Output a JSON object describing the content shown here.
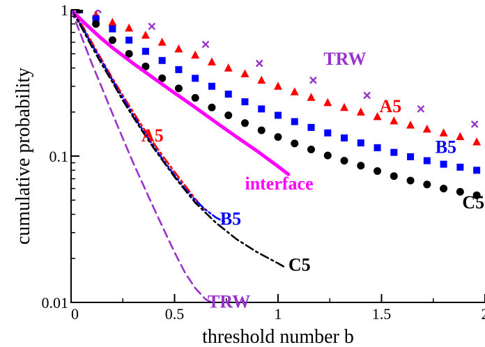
{
  "chart_data": {
    "type": "scatter",
    "xlabel": "threshold number b",
    "ylabel": "cumulative probability",
    "xlim": [
      0,
      2
    ],
    "ylim": [
      0.01,
      1
    ],
    "yscale": "log",
    "grid": false,
    "x_ticks": [
      0,
      0.5,
      1,
      1.5,
      2
    ],
    "x_tick_labels": [
      "0",
      "0.5",
      "1",
      "1.5",
      "2"
    ],
    "y_ticks": [
      0.01,
      0.1,
      1
    ],
    "y_tick_labels": [
      "0.01",
      "0.1",
      "1"
    ],
    "series": [
      {
        "name": "TRW",
        "style": "markers",
        "marker": "x",
        "color": "#9932cc",
        "x": [
          0.04,
          0.13,
          0.39,
          0.65,
          0.91,
          1.17,
          1.43,
          1.69,
          1.95
        ],
        "y": [
          1.0,
          1.0,
          0.77,
          0.58,
          0.43,
          0.33,
          0.26,
          0.21,
          0.165
        ]
      },
      {
        "name": "A5",
        "style": "markers",
        "marker": "triangle",
        "color": "#ff0000",
        "x": [
          0.04,
          0.12,
          0.2,
          0.28,
          0.36,
          0.44,
          0.52,
          0.6,
          0.68,
          0.76,
          0.84,
          0.92,
          1.0,
          1.08,
          1.16,
          1.24,
          1.32,
          1.4,
          1.48,
          1.56,
          1.64,
          1.72,
          1.8,
          1.88,
          1.96
        ],
        "y": [
          1.0,
          0.92,
          0.82,
          0.75,
          0.67,
          0.6,
          0.54,
          0.49,
          0.44,
          0.4,
          0.365,
          0.33,
          0.3,
          0.275,
          0.252,
          0.232,
          0.215,
          0.2,
          0.186,
          0.174,
          0.163,
          0.153,
          0.144,
          0.136,
          0.125
        ]
      },
      {
        "name": "B5",
        "style": "markers",
        "marker": "square",
        "color": "#0000ff",
        "x": [
          0.04,
          0.12,
          0.2,
          0.28,
          0.36,
          0.44,
          0.52,
          0.6,
          0.68,
          0.76,
          0.84,
          0.92,
          1.0,
          1.08,
          1.16,
          1.24,
          1.32,
          1.4,
          1.48,
          1.56,
          1.64,
          1.72,
          1.8,
          1.88,
          1.96
        ],
        "y": [
          1.0,
          0.87,
          0.74,
          0.62,
          0.52,
          0.45,
          0.39,
          0.34,
          0.3,
          0.265,
          0.235,
          0.21,
          0.19,
          0.172,
          0.157,
          0.144,
          0.133,
          0.123,
          0.114,
          0.106,
          0.099,
          0.093,
          0.088,
          0.084,
          0.08
        ]
      },
      {
        "name": "C5",
        "style": "markers",
        "marker": "circle",
        "color": "#000000",
        "x": [
          0.04,
          0.12,
          0.2,
          0.28,
          0.36,
          0.44,
          0.52,
          0.6,
          0.68,
          0.76,
          0.84,
          0.92,
          1.0,
          1.08,
          1.16,
          1.24,
          1.32,
          1.4,
          1.48,
          1.56,
          1.64,
          1.72,
          1.8,
          1.88,
          1.96
        ],
        "y": [
          1.0,
          0.8,
          0.62,
          0.5,
          0.41,
          0.34,
          0.29,
          0.25,
          0.215,
          0.19,
          0.168,
          0.15,
          0.135,
          0.122,
          0.111,
          0.101,
          0.093,
          0.086,
          0.079,
          0.073,
          0.068,
          0.064,
          0.06,
          0.057,
          0.054
        ]
      },
      {
        "name": "interface",
        "style": "solid",
        "color": "#ff00ff",
        "x": [
          0.0,
          0.05,
          0.1,
          0.15,
          0.2,
          0.3,
          0.4,
          0.5,
          0.6,
          0.7,
          0.8,
          0.9,
          1.0,
          1.05
        ],
        "y": [
          1.0,
          0.85,
          0.73,
          0.63,
          0.55,
          0.43,
          0.34,
          0.27,
          0.215,
          0.17,
          0.135,
          0.108,
          0.085,
          0.075
        ]
      },
      {
        "name": "A5",
        "style": "dashdot",
        "color": "#ff0000",
        "x": [
          0.0,
          0.05,
          0.1,
          0.15,
          0.2,
          0.25,
          0.3,
          0.35,
          0.4,
          0.45,
          0.5,
          0.55,
          0.6,
          0.65
        ],
        "y": [
          1.0,
          0.8,
          0.6,
          0.45,
          0.34,
          0.26,
          0.2,
          0.155,
          0.122,
          0.097,
          0.078,
          0.063,
          0.051,
          0.042
        ]
      },
      {
        "name": "B5",
        "style": "dashdotdot",
        "color": "#0000ff",
        "x": [
          0.0,
          0.05,
          0.1,
          0.15,
          0.2,
          0.25,
          0.3,
          0.35,
          0.4,
          0.45,
          0.5,
          0.55,
          0.6,
          0.65,
          0.7,
          0.75
        ],
        "y": [
          1.0,
          0.78,
          0.58,
          0.44,
          0.33,
          0.25,
          0.19,
          0.148,
          0.116,
          0.092,
          0.074,
          0.06,
          0.05,
          0.043,
          0.038,
          0.035
        ]
      },
      {
        "name": "C5",
        "style": "dashdot",
        "color": "#000000",
        "x": [
          0.0,
          0.05,
          0.1,
          0.15,
          0.2,
          0.25,
          0.3,
          0.35,
          0.4,
          0.5,
          0.6,
          0.7,
          0.8,
          0.9,
          1.0,
          1.03
        ],
        "y": [
          1.0,
          0.76,
          0.56,
          0.42,
          0.32,
          0.24,
          0.185,
          0.144,
          0.113,
          0.072,
          0.048,
          0.035,
          0.027,
          0.022,
          0.0185,
          0.0175
        ]
      },
      {
        "name": "TRW",
        "style": "dashed",
        "color": "#9932cc",
        "x": [
          0.0,
          0.05,
          0.1,
          0.15,
          0.2,
          0.25,
          0.3,
          0.35,
          0.4,
          0.45,
          0.5,
          0.55,
          0.6,
          0.65,
          0.68
        ],
        "y": [
          1.0,
          0.66,
          0.43,
          0.29,
          0.195,
          0.132,
          0.09,
          0.063,
          0.044,
          0.031,
          0.022,
          0.016,
          0.0125,
          0.0105,
          0.01
        ]
      }
    ],
    "annotations": [
      {
        "text": "TRW",
        "x": 1.22,
        "y": 0.42,
        "color": "#9932cc"
      },
      {
        "text": "A5",
        "x": 1.49,
        "y": 0.2,
        "color": "#ff0000"
      },
      {
        "text": "B5",
        "x": 1.76,
        "y": 0.105,
        "color": "#0000ff"
      },
      {
        "text": "C5",
        "x": 1.89,
        "y": 0.044,
        "color": "#000000"
      },
      {
        "text": "interface",
        "x": 0.84,
        "y": 0.059,
        "color": "#ff00ff"
      },
      {
        "text": "A5",
        "x": 0.34,
        "y": 0.126,
        "color": "#ff0000"
      },
      {
        "text": "B5",
        "x": 0.72,
        "y": 0.034,
        "color": "#0000ff"
      },
      {
        "text": "C5",
        "x": 1.05,
        "y": 0.0165,
        "color": "#000000"
      },
      {
        "text": "TRW",
        "x": 0.66,
        "y": 0.0092,
        "color": "#9932cc"
      }
    ]
  }
}
